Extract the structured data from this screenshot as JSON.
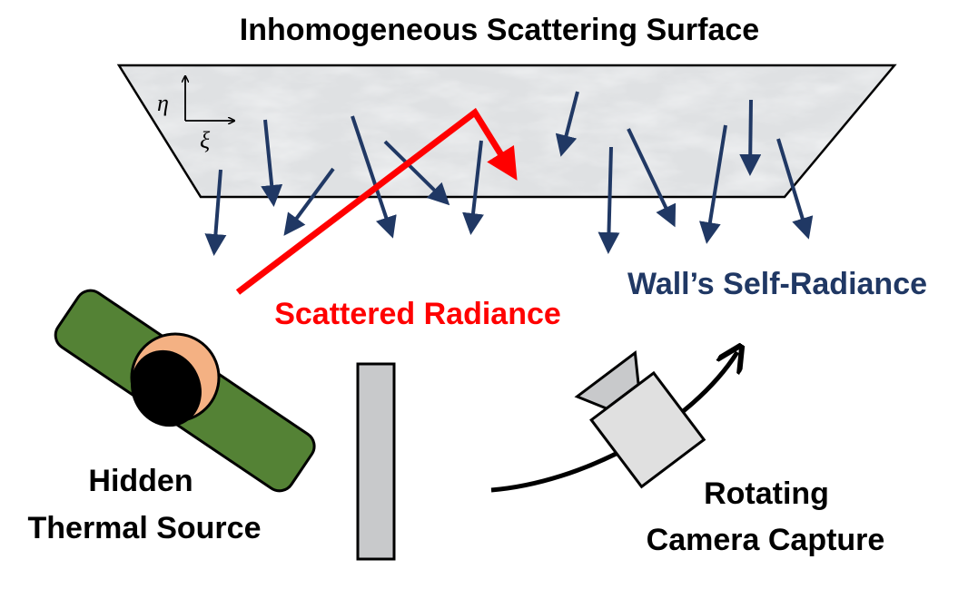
{
  "labels": {
    "title": "Inhomogeneous Scattering Surface",
    "scattered": "Scattered Radiance",
    "self_radiance": "Wall’s Self-Radiance",
    "hidden_line1": "Hidden",
    "hidden_line2": "Thermal Source",
    "camera_line1": "Rotating",
    "camera_line2": "Camera Capture",
    "axis_eta": "η",
    "axis_xi": "ξ"
  },
  "colors": {
    "surface_fill": "#dfe1e3",
    "surface_stroke": "#000000",
    "arrow_navy": "#203864",
    "scatter_red": "#ff0000",
    "source_green": "#548235",
    "head_skin": "#f4b183",
    "occluder_gray": "#c8c9cb",
    "camera_gray": "#e0e0e0"
  },
  "icons": {
    "camera": "camera-icon",
    "person": "person-icon",
    "rotation": "rotation-arrow-icon"
  }
}
